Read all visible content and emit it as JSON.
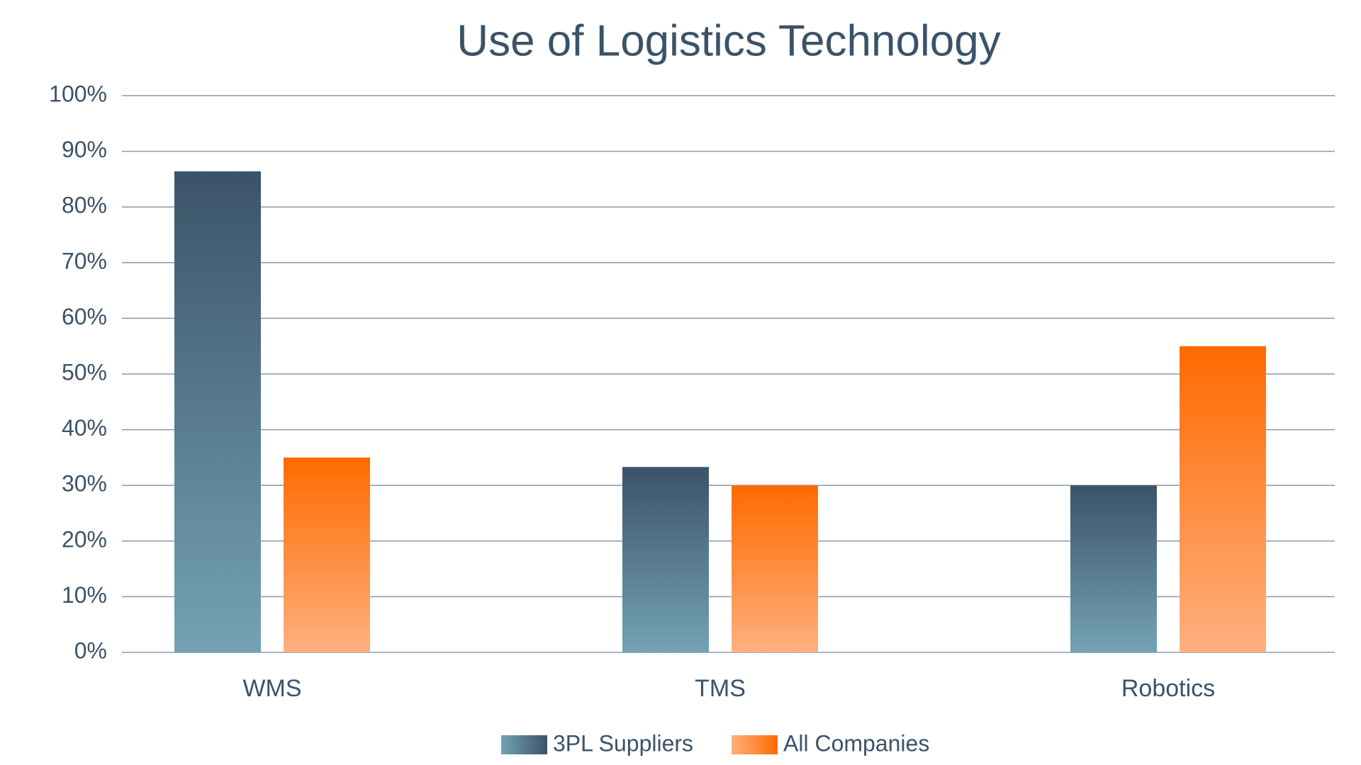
{
  "chart_data": {
    "type": "bar",
    "title": "Use of Logistics Technology",
    "categories": [
      "WMS",
      "TMS",
      "Robotics"
    ],
    "series": [
      {
        "name": "3PL Suppliers",
        "color": "#3b5368",
        "values": [
          86.4,
          33.3,
          30
        ]
      },
      {
        "name": "All Companies",
        "color": "#ff6a00",
        "values": [
          35,
          30,
          55
        ]
      }
    ],
    "ylim": [
      0,
      100
    ],
    "yticks": [
      {
        "value": 0,
        "label": "0%"
      },
      {
        "value": 10,
        "label": "10%"
      },
      {
        "value": 20,
        "label": "20%"
      },
      {
        "value": 30,
        "label": "30%"
      },
      {
        "value": 40,
        "label": "40%"
      },
      {
        "value": 50,
        "label": "50%"
      },
      {
        "value": 60,
        "label": "60%"
      },
      {
        "value": 70,
        "label": "70%"
      },
      {
        "value": 80,
        "label": "80%"
      },
      {
        "value": 90,
        "label": "90%"
      },
      {
        "value": 100,
        "label": "100%"
      }
    ],
    "grid": true,
    "legend": "bottom"
  }
}
